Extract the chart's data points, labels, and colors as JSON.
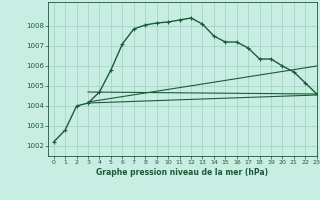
{
  "title": "Graphe pression niveau de la mer (hPa)",
  "bg_color": "#c8eee4",
  "grid_color": "#9dcfbf",
  "line_color": "#1a5c35",
  "xlim": [
    -0.5,
    23
  ],
  "ylim": [
    1001.5,
    1009.2
  ],
  "yticks": [
    1002,
    1003,
    1004,
    1005,
    1006,
    1007,
    1008
  ],
  "xticks": [
    0,
    1,
    2,
    3,
    4,
    5,
    6,
    7,
    8,
    9,
    10,
    11,
    12,
    13,
    14,
    15,
    16,
    17,
    18,
    19,
    20,
    21,
    22,
    23
  ],
  "series1_x": [
    0,
    1,
    2,
    3,
    4,
    5,
    6,
    7,
    8,
    9,
    10,
    11,
    12,
    13,
    14,
    15,
    16,
    17,
    18,
    19,
    20,
    21,
    22,
    23
  ],
  "series1_y": [
    1002.2,
    1002.8,
    1004.0,
    1004.15,
    1004.7,
    1005.8,
    1007.1,
    1007.85,
    1008.05,
    1008.15,
    1008.2,
    1008.3,
    1008.4,
    1008.1,
    1007.5,
    1007.2,
    1007.2,
    1006.9,
    1006.35,
    1006.35,
    1006.0,
    1005.7,
    1005.15,
    1004.6
  ],
  "series2_x": [
    3,
    23
  ],
  "series2_y": [
    1004.7,
    1004.6
  ],
  "series3_x": [
    3,
    23
  ],
  "series3_y": [
    1004.2,
    1006.0
  ],
  "series4_x": [
    3,
    23
  ],
  "series4_y": [
    1004.15,
    1004.55
  ]
}
